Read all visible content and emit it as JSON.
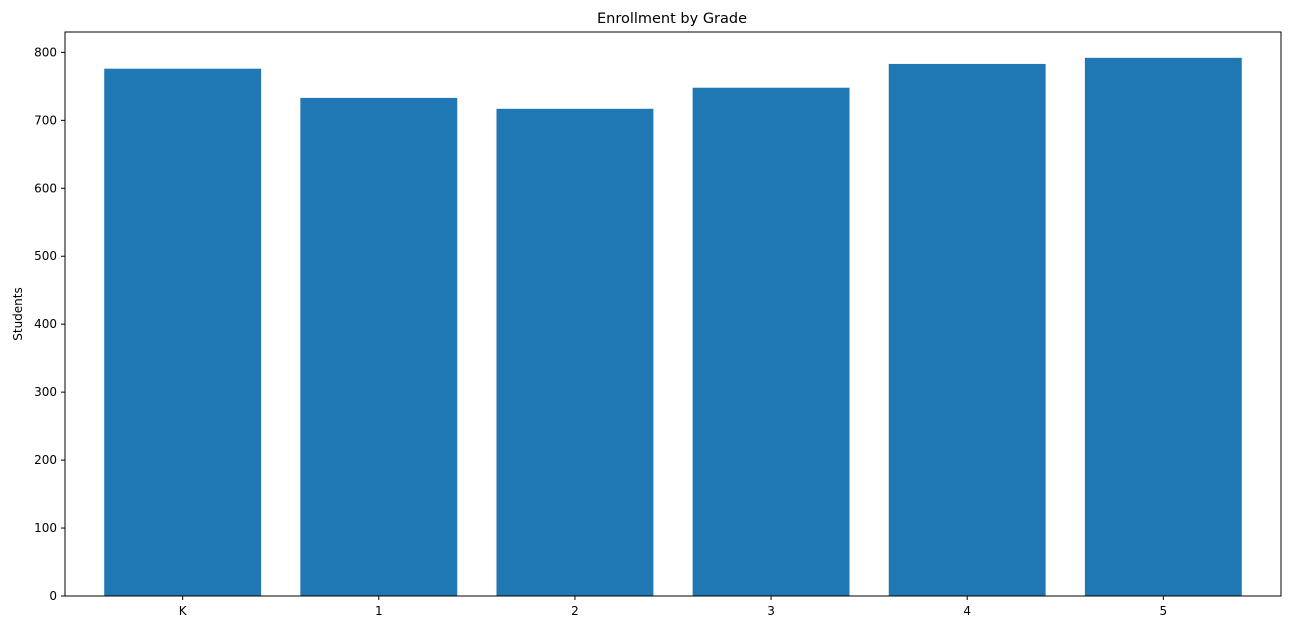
{
  "chart_data": {
    "type": "bar",
    "title": "Enrollment by Grade",
    "xlabel": "",
    "ylabel": "Students",
    "categories": [
      "K",
      "1",
      "2",
      "3",
      "4",
      "5"
    ],
    "values": [
      776,
      733,
      717,
      748,
      783,
      792
    ],
    "ylim": [
      0,
      830
    ],
    "yticks": [
      0,
      100,
      200,
      300,
      400,
      500,
      600,
      700,
      800
    ],
    "grid": false,
    "legend": "none",
    "bar_color": "#1f77b4"
  }
}
